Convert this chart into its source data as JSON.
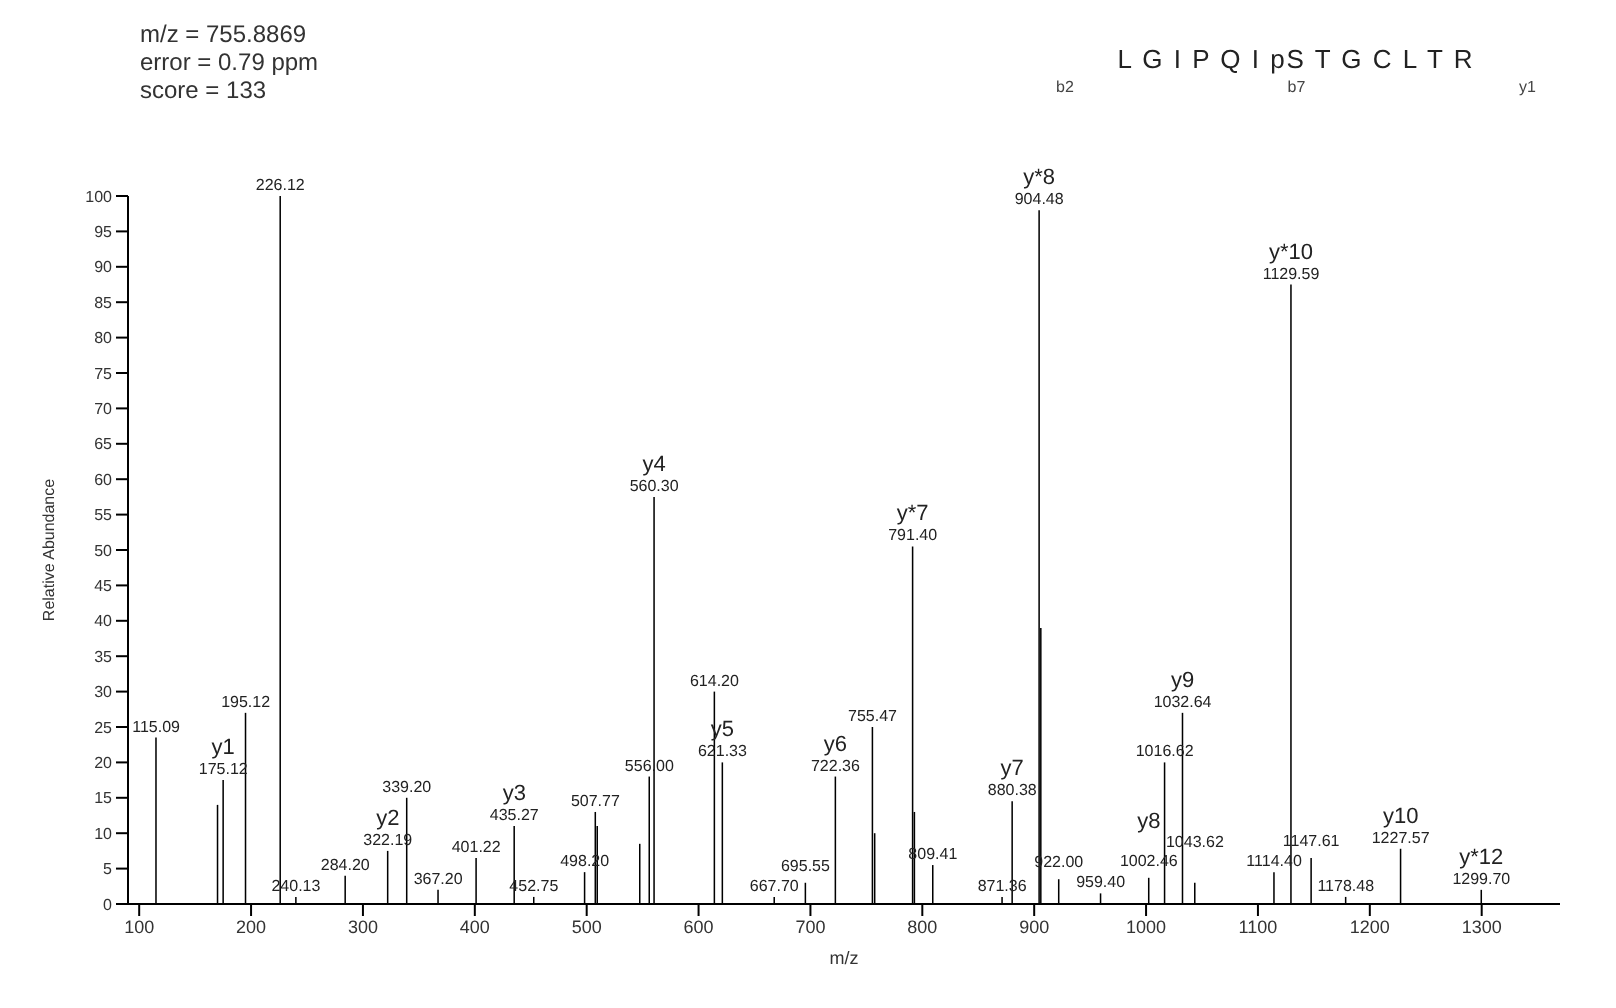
{
  "chart_data": {
    "type": "bar",
    "title": "m/z = 755.8869",
    "subtitle": "error = 0.79 ppm\nscore = 133",
    "xlabel": "m/z",
    "ylabel": "Relative Abundance",
    "x": [
      115.09,
      170.1,
      175.12,
      195.12,
      226.12,
      240.13,
      284.2,
      322.19,
      339.2,
      367.2,
      401.22,
      435.27,
      452.75,
      498.2,
      507.77,
      509.5,
      547.5,
      556.0,
      560.3,
      614.2,
      621.33,
      667.7,
      695.55,
      722.36,
      755.47,
      757.5,
      791.4,
      793.0,
      809.41,
      871.36,
      880.38,
      904.48,
      906.0,
      922.0,
      959.4,
      1002.46,
      1016.62,
      1032.64,
      1043.62,
      1114.4,
      1129.59,
      1147.61,
      1178.48,
      1227.57,
      1299.7
    ],
    "values": [
      23.5,
      14,
      17.5,
      27,
      100,
      1,
      4,
      7.5,
      15,
      2,
      6.5,
      11,
      1,
      4.5,
      13,
      11,
      8.5,
      18,
      57.5,
      30,
      20,
      1,
      3,
      18,
      25,
      10,
      50.5,
      13,
      5.5,
      1,
      14.5,
      98,
      39,
      3.5,
      1.5,
      3.7,
      20,
      27,
      3,
      4.5,
      87.5,
      6.5,
      1,
      7.8,
      2
    ],
    "color": "#000000",
    "xlim": [
      90,
      1370
    ],
    "xticks": [
      100,
      200,
      300,
      400,
      500,
      600,
      700,
      800,
      900,
      1000,
      1100,
      1200,
      1300
    ],
    "ylim": [
      0,
      100
    ],
    "yticks": [
      0,
      5,
      10,
      15,
      20,
      25,
      30,
      35,
      40,
      45,
      50,
      55,
      60,
      65,
      70,
      75,
      80,
      85,
      90,
      95,
      100
    ],
    "annotations": [
      {
        "text": "115.09",
        "x": 115.09,
        "y": 23.5
      },
      {
        "text": "175.12",
        "x": 175.12,
        "y": 17.5
      },
      {
        "text": "195.12",
        "x": 195.12,
        "y": 27
      },
      {
        "text": "226.12",
        "x": 226.12,
        "y": 100
      },
      {
        "text": "240.13",
        "x": 240.13,
        "y": 1
      },
      {
        "text": "284.20",
        "x": 284.2,
        "y": 4
      },
      {
        "text": "322.19",
        "x": 322.19,
        "y": 7.5
      },
      {
        "text": "339.20",
        "x": 339.2,
        "y": 15
      },
      {
        "text": "367.20",
        "x": 367.2,
        "y": 2
      },
      {
        "text": "401.22",
        "x": 401.22,
        "y": 6.5
      },
      {
        "text": "435.27",
        "x": 435.27,
        "y": 11
      },
      {
        "text": "452.75",
        "x": 452.75,
        "y": 1
      },
      {
        "text": "498.20",
        "x": 498.2,
        "y": 4.5
      },
      {
        "text": "507.77",
        "x": 507.77,
        "y": 13
      },
      {
        "text": "556.00",
        "x": 556.0,
        "y": 18
      },
      {
        "text": "560.30",
        "x": 560.3,
        "y": 57.5
      },
      {
        "text": "614.20",
        "x": 614.2,
        "y": 30
      },
      {
        "text": "621.33",
        "x": 621.33,
        "y": 20
      },
      {
        "text": "667.70",
        "x": 667.7,
        "y": 1
      },
      {
        "text": "695.55",
        "x": 695.55,
        "y": 3
      },
      {
        "text": "722.36",
        "x": 722.36,
        "y": 18
      },
      {
        "text": "755.47",
        "x": 755.47,
        "y": 25
      },
      {
        "text": "791.40",
        "x": 791.4,
        "y": 50.5
      },
      {
        "text": "809.41",
        "x": 809.41,
        "y": 5.5
      },
      {
        "text": "871.36",
        "x": 871.36,
        "y": 1
      },
      {
        "text": "880.38",
        "x": 880.38,
        "y": 14.5
      },
      {
        "text": "904.48",
        "x": 904.48,
        "y": 98
      },
      {
        "text": "922.00",
        "x": 922.0,
        "y": 3.5
      },
      {
        "text": "959.40",
        "x": 959.4,
        "y": 1.5
      },
      {
        "text": "1002.46",
        "x": 1002.46,
        "y": 3.7
      },
      {
        "text": "1016.62",
        "x": 1016.62,
        "y": 20
      },
      {
        "text": "1032.64",
        "x": 1032.64,
        "y": 27
      },
      {
        "text": "1043.62",
        "x": 1043.62,
        "y": 3
      },
      {
        "text": "1114.40",
        "x": 1114.4,
        "y": 4.5
      },
      {
        "text": "1129.59",
        "x": 1129.59,
        "y": 87.5
      },
      {
        "text": "1147.61",
        "x": 1147.61,
        "y": 6.5
      },
      {
        "text": "1178.48",
        "x": 1178.48,
        "y": 1
      },
      {
        "text": "1227.57",
        "x": 1227.57,
        "y": 7.8
      },
      {
        "text": "1299.70",
        "x": 1299.7,
        "y": 2
      },
      {
        "text": "y1",
        "x": 175.12,
        "y": 17.5
      },
      {
        "text": "y2",
        "x": 322.19,
        "y": 7.5
      },
      {
        "text": "y3",
        "x": 435.27,
        "y": 11
      },
      {
        "text": "y4",
        "x": 560.3,
        "y": 57.5
      },
      {
        "text": "y5",
        "x": 621.33,
        "y": 20
      },
      {
        "text": "y6",
        "x": 722.36,
        "y": 18
      },
      {
        "text": "y*7",
        "x": 791.4,
        "y": 50.5
      },
      {
        "text": "y7",
        "x": 880.38,
        "y": 14.5
      },
      {
        "text": "y*8",
        "x": 904.48,
        "y": 98
      },
      {
        "text": "y8",
        "x": 1002.46,
        "y": 3.7
      },
      {
        "text": "y9",
        "x": 1032.64,
        "y": 27
      },
      {
        "text": "y*10",
        "x": 1129.59,
        "y": 87.5
      },
      {
        "text": "y10",
        "x": 1227.57,
        "y": 7.8
      },
      {
        "text": "y*12",
        "x": 1299.7,
        "y": 2
      },
      "L G I P Q I pS T G C L T R",
      "b2",
      "b7",
      "y1"
    ]
  }
}
